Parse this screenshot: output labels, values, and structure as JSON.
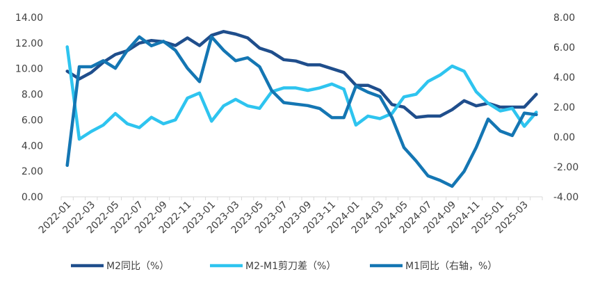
{
  "chart_data": {
    "type": "line",
    "title": "",
    "x": [
      "2022-01",
      "2022-02",
      "2022-03",
      "2022-04",
      "2022-05",
      "2022-06",
      "2022-07",
      "2022-08",
      "2022-09",
      "2022-10",
      "2022-11",
      "2022-12",
      "2023-01",
      "2023-02",
      "2023-03",
      "2023-04",
      "2023-05",
      "2023-06",
      "2023-07",
      "2023-08",
      "2023-09",
      "2023-10",
      "2023-11",
      "2023-12",
      "2024-01",
      "2024-02",
      "2024-03",
      "2024-04",
      "2024-05",
      "2024-06",
      "2024-07",
      "2024-08",
      "2024-09",
      "2024-10",
      "2024-11",
      "2024-12",
      "2025-01",
      "2025-02",
      "2025-03",
      "2025-04"
    ],
    "x_tick_labels": [
      "2022-01",
      "2022-03",
      "2022-05",
      "2022-07",
      "2022-09",
      "2022-11",
      "2023-01",
      "2023-03",
      "2023-05",
      "2023-07",
      "2023-09",
      "2023-11",
      "2024-01",
      "2024-03",
      "2024-05",
      "2024-07",
      "2024-09",
      "2024-11",
      "2025-01",
      "2025-03"
    ],
    "y_left": {
      "ylim": [
        0,
        14
      ],
      "ticks": [
        "0.00",
        "2.00",
        "4.00",
        "6.00",
        "8.00",
        "10.00",
        "12.00",
        "14.00"
      ]
    },
    "y_right": {
      "ylim": [
        -4,
        8
      ],
      "ticks": [
        "-4.00",
        "-2.00",
        "0.00",
        "2.00",
        "4.00",
        "6.00",
        "8.00"
      ]
    },
    "grid": false,
    "legend_position": "bottom",
    "series": [
      {
        "name": "M2同比（%）",
        "axis": "left",
        "color": "#1f4e8c",
        "values": [
          9.8,
          9.2,
          9.7,
          10.5,
          11.1,
          11.4,
          12.0,
          12.2,
          12.1,
          11.8,
          12.4,
          11.8,
          12.6,
          12.9,
          12.7,
          12.4,
          11.6,
          11.3,
          10.7,
          10.6,
          10.3,
          10.3,
          10.0,
          9.7,
          8.7,
          8.7,
          8.3,
          7.2,
          7.0,
          6.2,
          6.3,
          6.3,
          6.8,
          7.5,
          7.1,
          7.3,
          7.0,
          7.0,
          7.0,
          8.0
        ]
      },
      {
        "name": "M2-M1剪刀差（%）",
        "axis": "left",
        "color": "#2ec4ef",
        "values": [
          11.7,
          4.5,
          5.1,
          5.6,
          6.5,
          5.7,
          5.4,
          6.2,
          5.7,
          6.0,
          7.7,
          8.1,
          5.9,
          7.1,
          7.6,
          7.1,
          6.9,
          8.2,
          8.5,
          8.5,
          8.3,
          8.5,
          8.8,
          8.4,
          5.6,
          6.3,
          6.1,
          6.5,
          7.8,
          8.0,
          9.0,
          9.5,
          10.2,
          9.8,
          8.2,
          7.3,
          6.7,
          6.9,
          5.5,
          6.6
        ]
      },
      {
        "name": "M1同比（右轴，%）",
        "axis": "right",
        "color": "#1476b3",
        "values": [
          -1.9,
          4.7,
          4.7,
          5.1,
          4.6,
          5.8,
          6.7,
          6.1,
          6.4,
          5.8,
          4.6,
          3.7,
          6.7,
          5.8,
          5.1,
          5.3,
          4.7,
          3.1,
          2.3,
          2.2,
          2.1,
          1.9,
          1.3,
          1.3,
          3.4,
          3.0,
          2.7,
          1.3,
          -0.7,
          -1.6,
          -2.6,
          -2.9,
          -3.3,
          -2.3,
          -0.7,
          1.2,
          0.4,
          0.1,
          1.6,
          1.5
        ]
      }
    ]
  }
}
